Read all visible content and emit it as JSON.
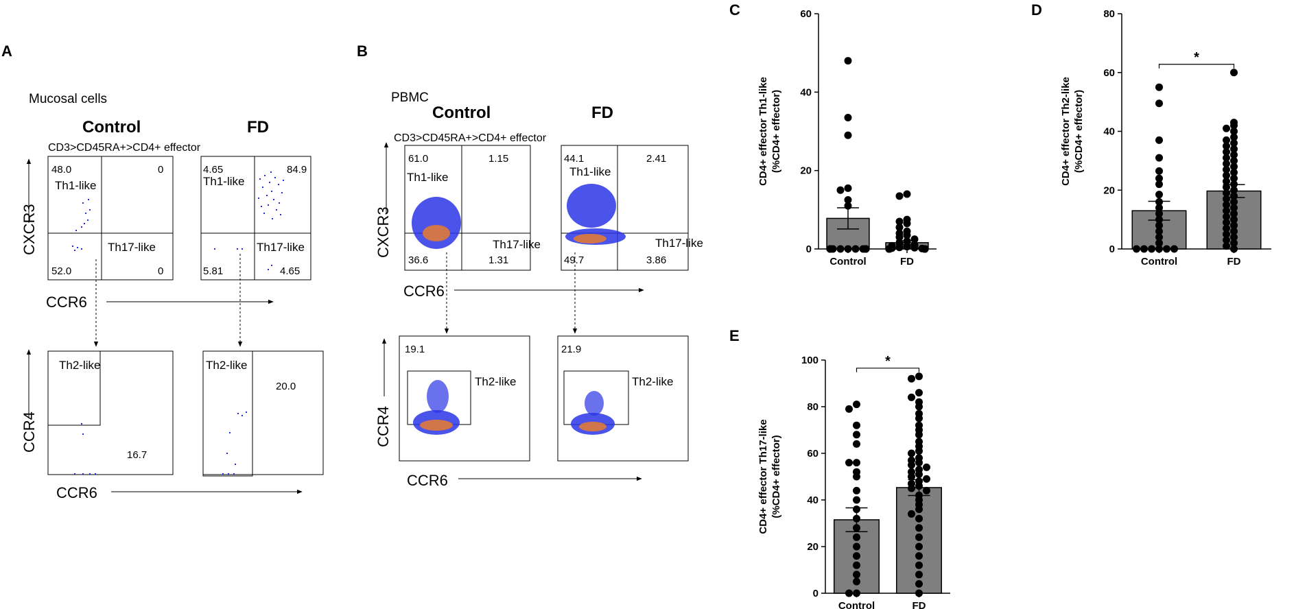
{
  "panel_labels": {
    "a": "A",
    "b": "B",
    "c": "C",
    "d": "D",
    "e": "E"
  },
  "flow_a": {
    "sample": "Mucosal cells",
    "group_control": "Control",
    "group_fd": "FD",
    "gating": "CD3>CD45RA+>CD4+ effector",
    "top_xlabel": "CCR6",
    "top_ylabel": "CXCR3",
    "bottom_xlabel": "CCR6",
    "bottom_ylabel": "CCR4",
    "control_top": {
      "q_tl": "48.0",
      "q_tr": "0",
      "q_bl": "52.0",
      "q_br": "0",
      "gate_th1": "Th1-like",
      "gate_th17": "Th17-like"
    },
    "fd_top": {
      "q_tl": "4.65",
      "q_tr": "84.9",
      "q_bl": "5.81",
      "q_br": "4.65",
      "gate_th1": "Th1-like",
      "gate_th17": "Th17-like"
    },
    "control_bottom": {
      "gate_th2": "Th2-like",
      "value": "16.7"
    },
    "fd_bottom": {
      "gate_th2": "Th2-like",
      "value": "20.0"
    }
  },
  "flow_b": {
    "sample": "PBMC",
    "group_control": "Control",
    "group_fd": "FD",
    "gating": "CD3>CD45RA+>CD4+ effector",
    "top_xlabel": "CCR6",
    "top_ylabel": "CXCR3",
    "bottom_xlabel": "CCR6",
    "bottom_ylabel": "CCR4",
    "control_top": {
      "q_tl": "61.0",
      "q_tr": "1.15",
      "q_bl": "36.6",
      "q_br": "1.31",
      "gate_th1": "Th1-like",
      "gate_th17": "Th17-like"
    },
    "fd_top": {
      "q_tl": "44.1",
      "q_tr": "2.41",
      "q_bl": "49.7",
      "q_br": "3.86",
      "gate_th1": "Th1-like",
      "gate_th17": "Th17-like"
    },
    "control_bottom": {
      "value": "19.1",
      "gate_th2": "Th2-like"
    },
    "fd_bottom": {
      "value": "21.9",
      "gate_th2": "Th2-like"
    }
  },
  "chart_data": [
    {
      "panel": "C",
      "type": "bar",
      "categories": [
        "Control",
        "FD"
      ],
      "values": [
        7.8,
        1.6
      ],
      "sem": [
        2.7,
        0.5
      ],
      "ylabel": "CD4+ effector Th1-like\n(%CD4+ effector)",
      "ylim": [
        0,
        60
      ],
      "yticks": [
        0,
        20,
        40,
        60
      ],
      "points": [
        [
          48,
          33.5,
          29,
          15.5,
          15,
          12.5,
          11,
          0,
          0,
          0,
          0,
          0,
          0,
          0,
          0,
          0,
          0,
          0,
          0,
          0,
          0,
          0
        ],
        [
          14,
          13.5,
          7.5,
          7,
          6.5,
          5.5,
          4.5,
          4,
          3.5,
          3,
          2.5,
          2,
          1.5,
          1,
          0.8,
          0.6,
          0.4,
          0.3,
          0.2,
          0.1,
          0,
          0,
          0,
          0,
          0,
          0,
          0,
          0,
          0,
          0,
          0,
          0,
          0,
          0,
          0,
          0,
          0,
          0,
          0,
          0,
          0,
          0,
          0,
          0
        ]
      ],
      "significance": ""
    },
    {
      "panel": "D",
      "type": "bar",
      "categories": [
        "Control",
        "FD"
      ],
      "values": [
        13,
        19.7
      ],
      "sem": [
        3.2,
        2.2
      ],
      "ylabel": "CD4+ effector Th2-like\n(%CD4+ effector)",
      "ylim": [
        0,
        80
      ],
      "yticks": [
        0,
        20,
        40,
        60,
        80
      ],
      "points": [
        [
          55,
          49.5,
          37,
          31,
          26.5,
          24,
          22,
          18.5,
          16,
          14,
          12,
          10,
          8,
          6,
          4,
          2,
          0,
          0,
          0,
          0,
          0,
          0
        ],
        [
          60,
          43,
          42,
          41,
          40,
          38,
          37,
          36,
          35,
          34,
          33,
          32,
          31,
          30,
          29,
          28,
          27,
          26,
          25,
          24,
          23,
          22,
          21,
          20,
          19,
          18,
          17,
          16,
          15,
          14,
          13,
          12,
          11,
          10,
          9,
          8,
          7,
          6,
          5,
          4,
          3,
          2,
          1,
          0
        ]
      ],
      "significance": "*"
    },
    {
      "panel": "E",
      "type": "bar",
      "categories": [
        "Control",
        "FD"
      ],
      "values": [
        31.5,
        45.3
      ],
      "sem": [
        5.1,
        3.4
      ],
      "ylabel": "CD4+ effector Th17-like\n(%CD4+ effector)",
      "ylim": [
        0,
        100
      ],
      "yticks": [
        0,
        20,
        40,
        60,
        80,
        100
      ],
      "points": [
        [
          81,
          79,
          72,
          68,
          64,
          56,
          56,
          52,
          50,
          44,
          40,
          36,
          32,
          28,
          24,
          20,
          16,
          12,
          8,
          5,
          0,
          0
        ],
        [
          93,
          92,
          86,
          84,
          82,
          80,
          77,
          75,
          72,
          70,
          68,
          65,
          63,
          61,
          60,
          58,
          57,
          56,
          55,
          54,
          53,
          52,
          51,
          50,
          49,
          48,
          47,
          46,
          45,
          44,
          42,
          40,
          38,
          36,
          34,
          32,
          28,
          24,
          20,
          16,
          12,
          8,
          4,
          0
        ]
      ],
      "significance": "*"
    }
  ]
}
